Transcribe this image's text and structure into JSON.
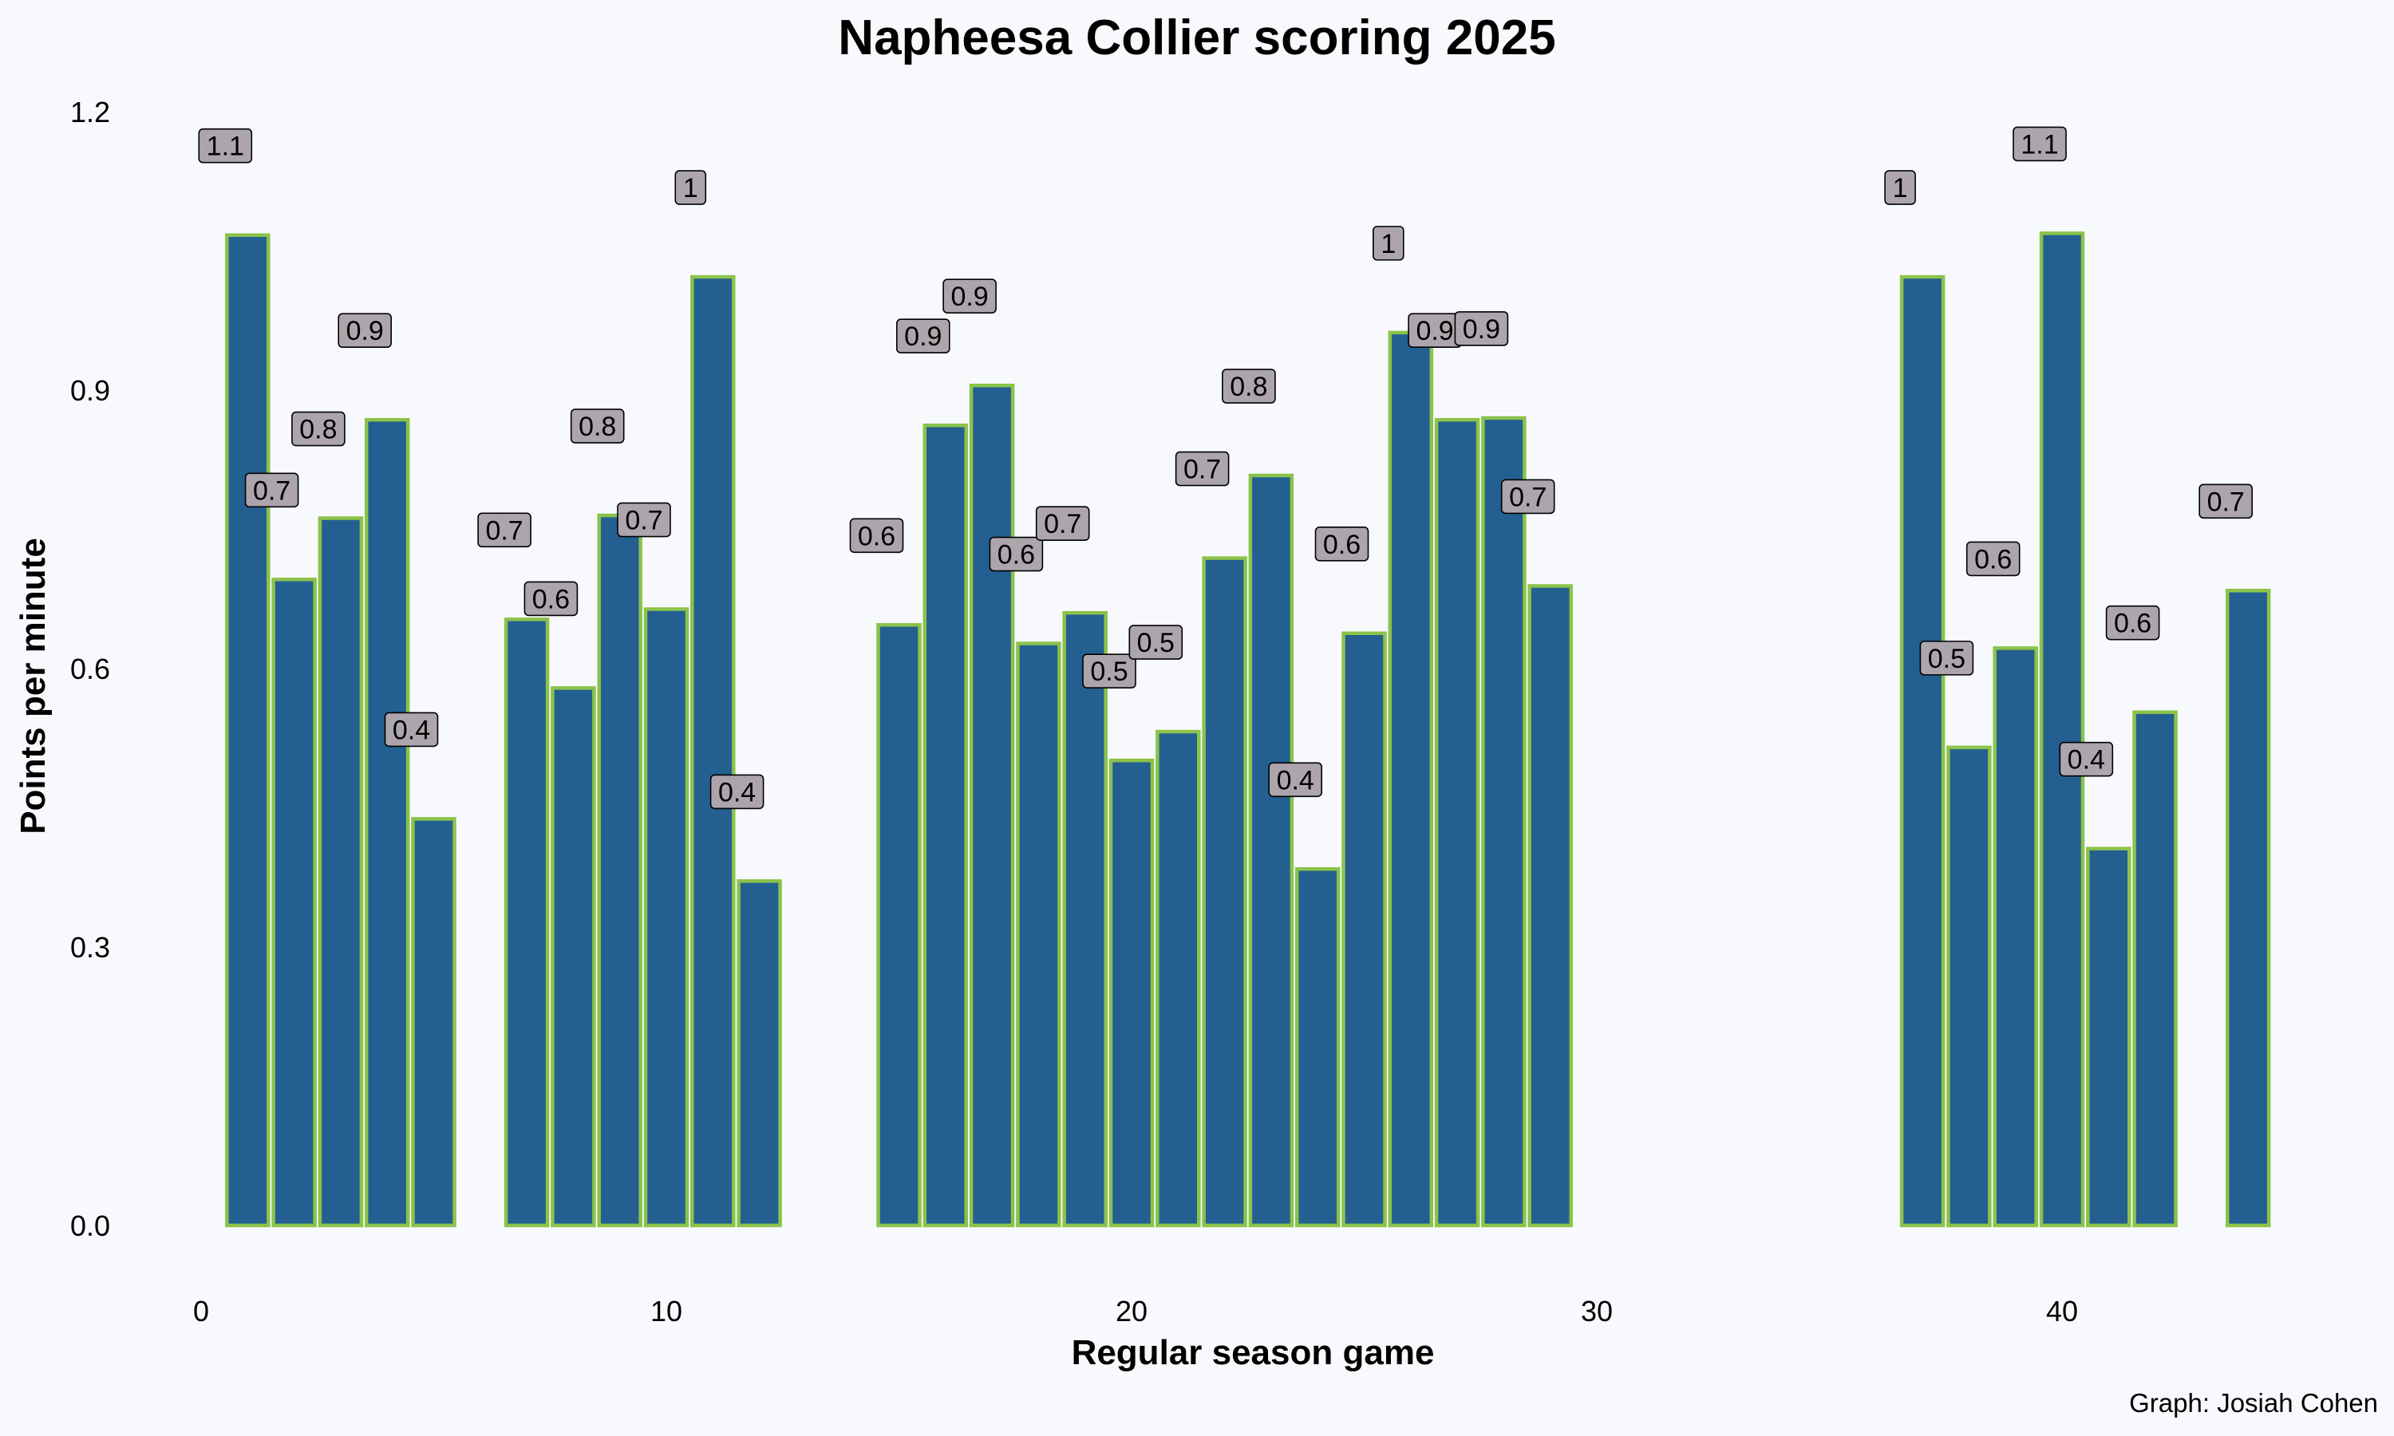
{
  "chart_data": {
    "type": "bar",
    "title": "Napheesa Collier scoring 2025",
    "xlabel": "Regular season game",
    "ylabel": "Points per minute",
    "caption": "Graph: Josiah Cohen",
    "xlim": [
      0,
      45
    ],
    "ylim": [
      0,
      1.2
    ],
    "x_ticks": [
      0,
      10,
      20,
      30,
      40
    ],
    "y_ticks": [
      0.0,
      0.3,
      0.6,
      0.9,
      1.2
    ],
    "y_tick_labels": [
      "0.0",
      "0.3",
      "0.6",
      "0.9",
      "1.2"
    ],
    "grid": false,
    "colors": {
      "bar_fill": "#245f91",
      "bar_outline": "#8bc34a",
      "label_fill": "#aca6ac",
      "background": "#f8f9fd"
    },
    "points": [
      {
        "x": 1,
        "y": 1.067,
        "label": "1.1"
      },
      {
        "x": 2,
        "y": 0.696,
        "label": "0.7"
      },
      {
        "x": 3,
        "y": 0.762,
        "label": "0.8"
      },
      {
        "x": 4,
        "y": 0.868,
        "label": "0.9"
      },
      {
        "x": 5,
        "y": 0.438,
        "label": "0.4"
      },
      {
        "x": 7,
        "y": 0.653,
        "label": "0.7"
      },
      {
        "x": 8,
        "y": 0.579,
        "label": "0.6"
      },
      {
        "x": 9,
        "y": 0.765,
        "label": "0.8"
      },
      {
        "x": 10,
        "y": 0.664,
        "label": "0.7"
      },
      {
        "x": 11,
        "y": 1.022,
        "label": "1"
      },
      {
        "x": 12,
        "y": 0.371,
        "label": "0.4"
      },
      {
        "x": 15,
        "y": 0.647,
        "label": "0.6"
      },
      {
        "x": 16,
        "y": 0.862,
        "label": "0.9"
      },
      {
        "x": 17,
        "y": 0.905,
        "label": "0.9"
      },
      {
        "x": 18,
        "y": 0.627,
        "label": "0.6"
      },
      {
        "x": 19,
        "y": 0.66,
        "label": "0.7"
      },
      {
        "x": 20,
        "y": 0.501,
        "label": "0.5"
      },
      {
        "x": 21,
        "y": 0.532,
        "label": "0.5"
      },
      {
        "x": 22,
        "y": 0.719,
        "label": "0.7"
      },
      {
        "x": 23,
        "y": 0.808,
        "label": "0.8"
      },
      {
        "x": 24,
        "y": 0.384,
        "label": "0.4"
      },
      {
        "x": 25,
        "y": 0.638,
        "label": "0.6"
      },
      {
        "x": 26,
        "y": 0.962,
        "label": "1"
      },
      {
        "x": 27,
        "y": 0.868,
        "label": "0.9"
      },
      {
        "x": 28,
        "y": 0.87,
        "label": "0.9"
      },
      {
        "x": 29,
        "y": 0.689,
        "label": "0.7"
      },
      {
        "x": 37,
        "y": 1.022,
        "label": "1"
      },
      {
        "x": 38,
        "y": 0.515,
        "label": "0.5"
      },
      {
        "x": 39,
        "y": 0.622,
        "label": "0.6"
      },
      {
        "x": 40,
        "y": 1.069,
        "label": "1.1"
      },
      {
        "x": 41,
        "y": 0.406,
        "label": "0.4"
      },
      {
        "x": 42,
        "y": 0.553,
        "label": "0.6"
      },
      {
        "x": 44,
        "y": 0.684,
        "label": "0.7"
      }
    ]
  }
}
